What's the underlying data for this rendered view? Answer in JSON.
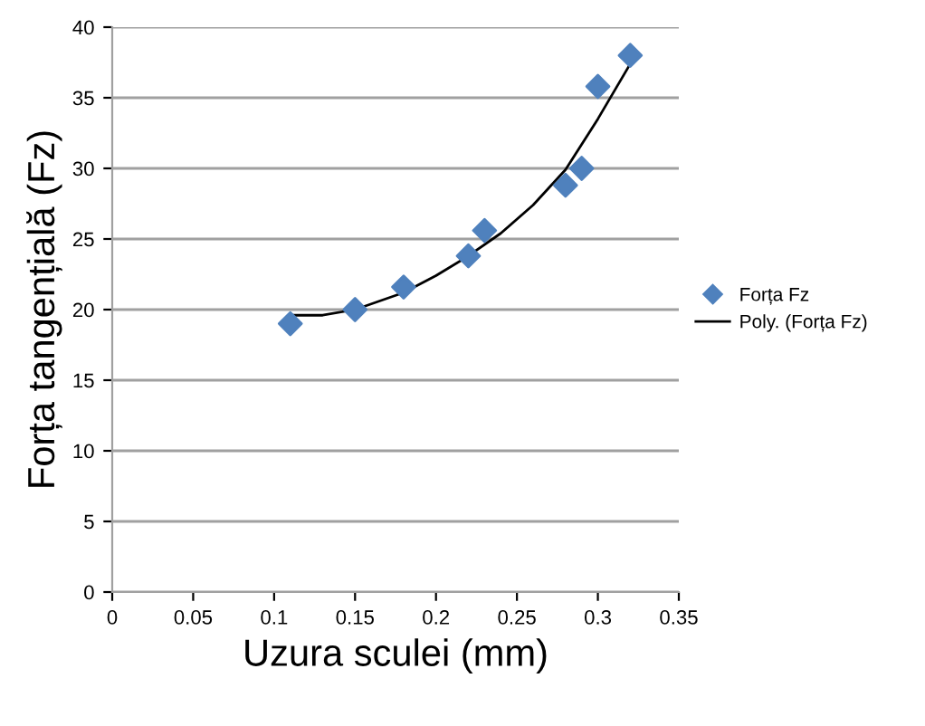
{
  "chart_data": {
    "type": "scatter",
    "xlabel": "Uzura sculei (mm)",
    "ylabel": "Forța tangențială (Fz)",
    "xlim": [
      0,
      0.35
    ],
    "xticks": [
      {
        "value": 0,
        "label": "0"
      },
      {
        "value": 0.05,
        "label": "0.05"
      },
      {
        "value": 0.1,
        "label": "0.1"
      },
      {
        "value": 0.15,
        "label": "0.15"
      },
      {
        "value": 0.2,
        "label": "0.2"
      },
      {
        "value": 0.25,
        "label": "0.25"
      },
      {
        "value": 0.3,
        "label": "0.3"
      },
      {
        "value": 0.35,
        "label": "0.35"
      }
    ],
    "ylim": [
      0,
      40
    ],
    "yticks": [
      0,
      5,
      10,
      15,
      20,
      25,
      30,
      35,
      40
    ],
    "grid": "y",
    "legend": "right",
    "marker": "diamond",
    "series": [
      {
        "name": "Forța Fz",
        "color": "#4f81bd",
        "x": [
          0.11,
          0.15,
          0.18,
          0.22,
          0.23,
          0.28,
          0.29,
          0.3,
          0.32
        ],
        "values": [
          19,
          20,
          21.6,
          23.8,
          25.6,
          28.8,
          30,
          35.8,
          38
        ]
      },
      {
        "name": "Poly. (Forța Fz)",
        "type": "line",
        "color": "#000000",
        "marker": "none",
        "x": [
          0.11,
          0.13,
          0.15,
          0.18,
          0.2,
          0.22,
          0.24,
          0.26,
          0.28,
          0.3,
          0.32
        ],
        "values": [
          19.6,
          19.6,
          20,
          21.2,
          22.4,
          23.8,
          25.4,
          27.4,
          29.9,
          33.5,
          37.4
        ]
      }
    ]
  }
}
